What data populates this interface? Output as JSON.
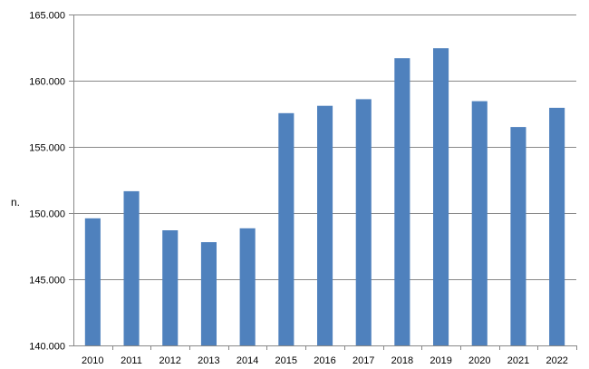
{
  "chart_data": {
    "type": "bar",
    "title": "",
    "xlabel": "",
    "ylabel": "n.",
    "ylim": [
      140000,
      165000
    ],
    "ytick_values": [
      140000,
      145000,
      150000,
      155000,
      160000,
      165000
    ],
    "ytick_labels": [
      "140.000",
      "145.000",
      "150.000",
      "155.000",
      "160.000",
      "165.000"
    ],
    "grid": true,
    "legend": "none",
    "categories": [
      "2010",
      "2011",
      "2012",
      "2013",
      "2014",
      "2015",
      "2016",
      "2017",
      "2018",
      "2019",
      "2020",
      "2021",
      "2022"
    ],
    "values": [
      149600,
      151650,
      148700,
      147800,
      148850,
      157550,
      158100,
      158600,
      161700,
      162450,
      158450,
      156500,
      157950
    ],
    "bar_color": "#4F81BD",
    "grid_color": "#888888"
  }
}
